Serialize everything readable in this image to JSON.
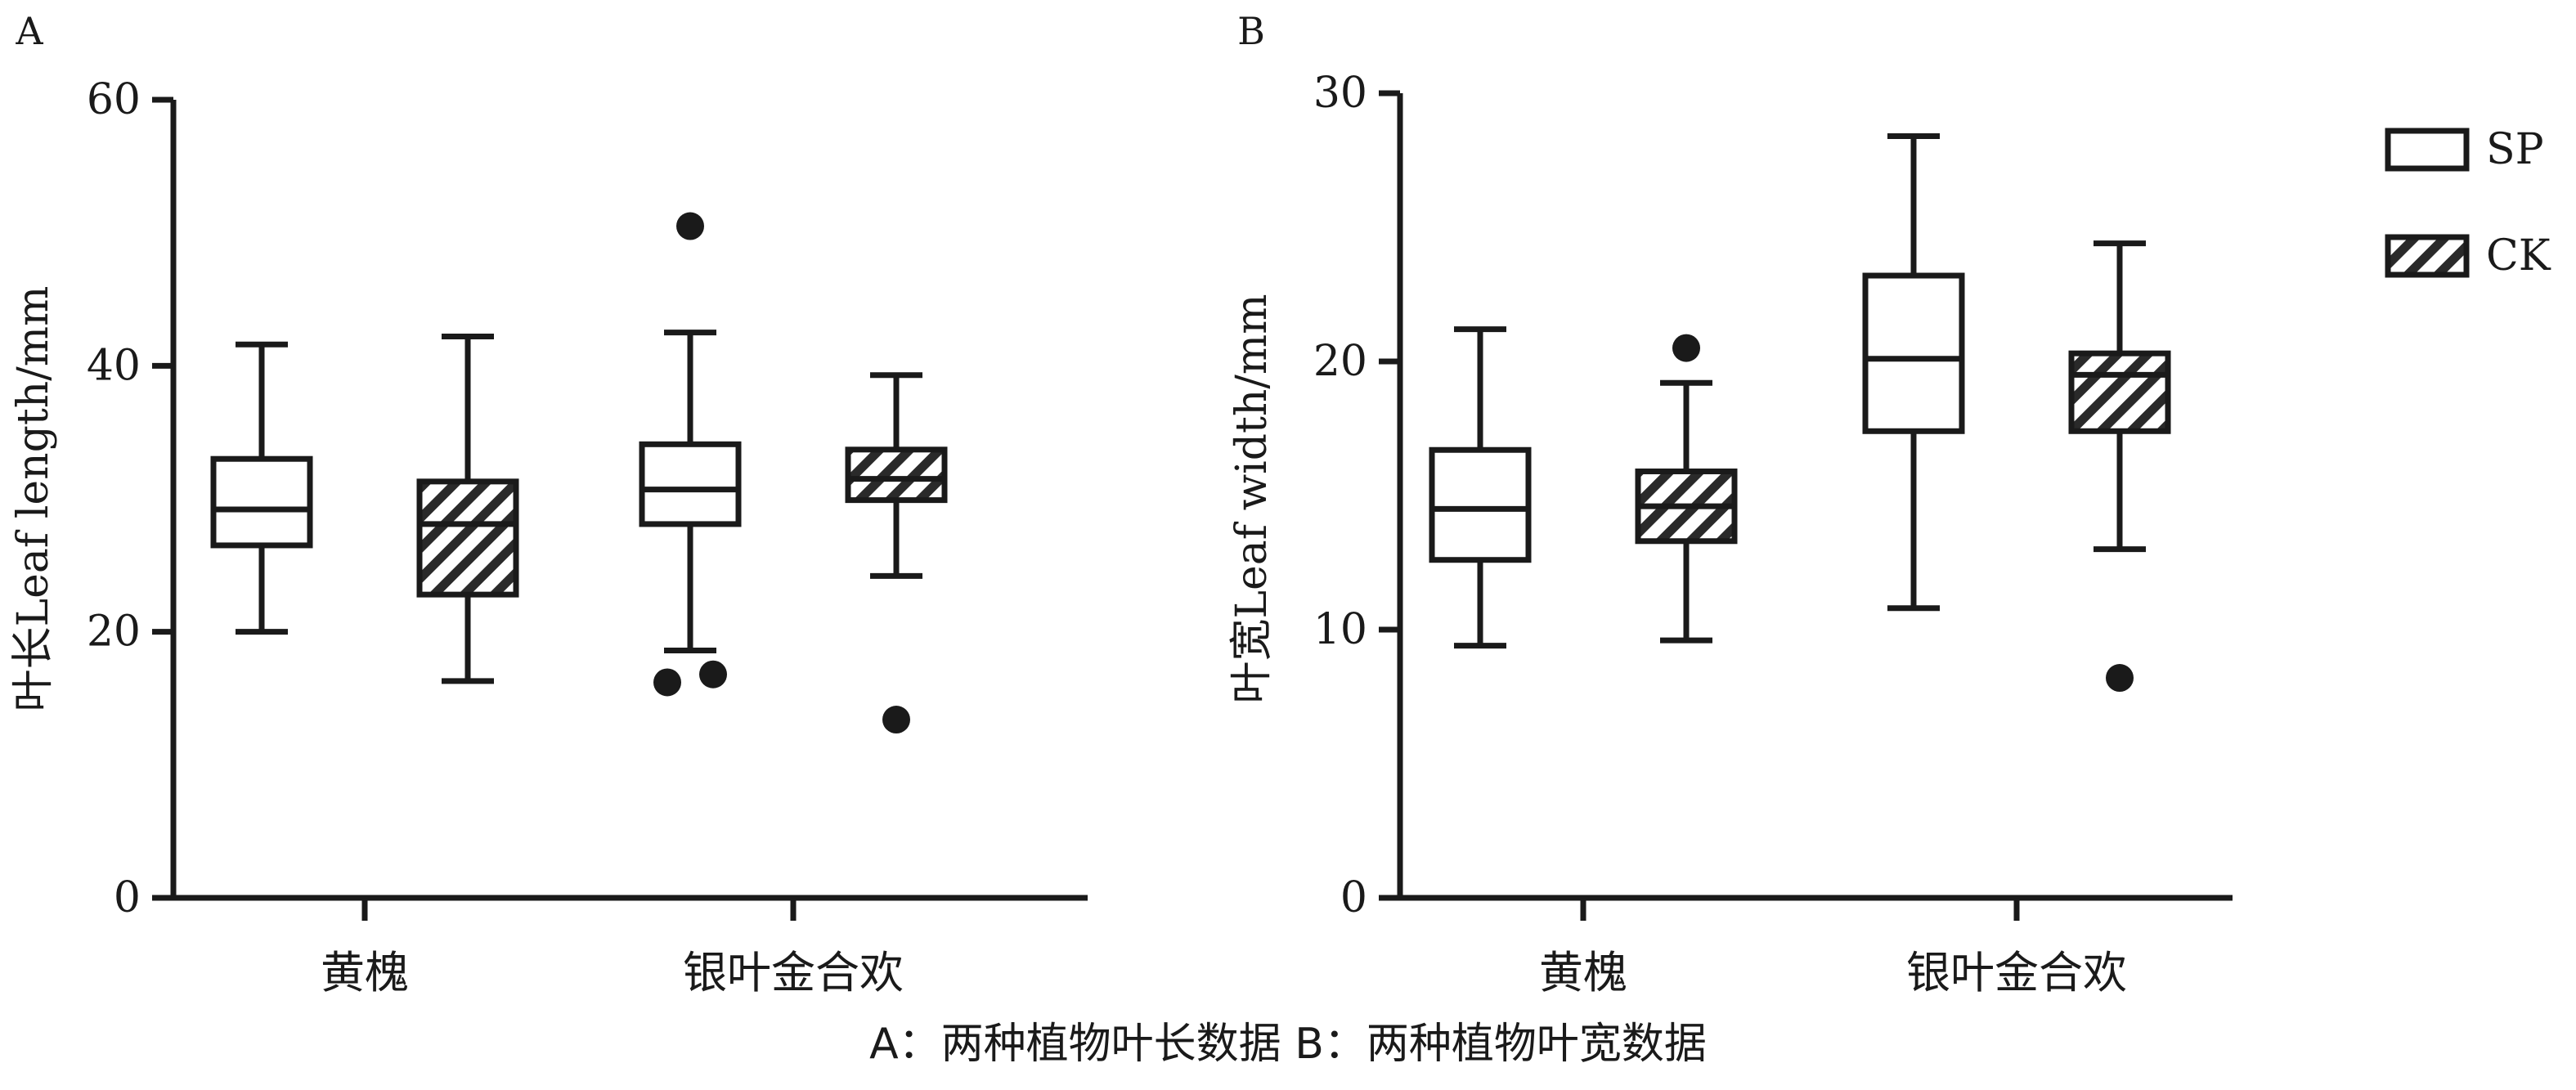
{
  "caption": "A：两种植物叶长数据 B：两种植物叶宽数据",
  "legend": {
    "items": [
      {
        "label": "SP",
        "pattern": "open"
      },
      {
        "label": "CK",
        "pattern": "hatched"
      }
    ],
    "placement": "top-right"
  },
  "chart_data": [
    {
      "type": "box",
      "panel_label": "A",
      "ylabel": "叶长Leaf length/mm",
      "ylim": [
        0,
        60
      ],
      "yticks": [
        0,
        20,
        40,
        60
      ],
      "categories": [
        "黄槐",
        "银叶金合欢"
      ],
      "series": [
        {
          "name": "SP",
          "boxes": [
            {
              "category": "黄槐",
              "whisker_low": 20,
              "q1": 26.5,
              "median": 29.2,
              "q3": 33,
              "whisker_high": 41.6,
              "outliers": []
            },
            {
              "category": "银叶金合欢",
              "whisker_low": 18.6,
              "q1": 28.1,
              "median": 30.7,
              "q3": 34.1,
              "whisker_high": 42.5,
              "outliers": [
                16.2,
                16.8,
                50.5
              ]
            }
          ]
        },
        {
          "name": "CK",
          "boxes": [
            {
              "category": "黄槐",
              "whisker_low": 16.3,
              "q1": 22.8,
              "median": 28.1,
              "q3": 31.3,
              "whisker_high": 42.2,
              "outliers": []
            },
            {
              "category": "银叶金合欢",
              "whisker_low": 24.2,
              "q1": 29.9,
              "median": 31.5,
              "q3": 33.7,
              "whisker_high": 39.3,
              "outliers": [
                13.4
              ]
            }
          ]
        }
      ]
    },
    {
      "type": "box",
      "panel_label": "B",
      "ylabel": "叶宽Leaf width/mm",
      "ylim": [
        0,
        30
      ],
      "yticks": [
        0,
        10,
        20,
        30
      ],
      "categories": [
        "黄槐",
        "银叶金合欢"
      ],
      "series": [
        {
          "name": "SP",
          "boxes": [
            {
              "category": "黄槐",
              "whisker_low": 9.4,
              "q1": 12.6,
              "median": 14.5,
              "q3": 16.7,
              "whisker_high": 21.2,
              "outliers": []
            },
            {
              "category": "银叶金合欢",
              "whisker_low": 10.8,
              "q1": 17.4,
              "median": 20.1,
              "q3": 23.2,
              "whisker_high": 28.4,
              "outliers": []
            }
          ]
        },
        {
          "name": "CK",
          "boxes": [
            {
              "category": "黄槐",
              "whisker_low": 9.6,
              "q1": 13.3,
              "median": 14.6,
              "q3": 15.9,
              "whisker_high": 19.2,
              "outliers": [
                20.5
              ]
            },
            {
              "category": "银叶金合欢",
              "whisker_low": 13,
              "q1": 17.4,
              "median": 19.5,
              "q3": 20.3,
              "whisker_high": 24.4,
              "outliers": [
                8.2
              ]
            }
          ]
        }
      ]
    }
  ]
}
